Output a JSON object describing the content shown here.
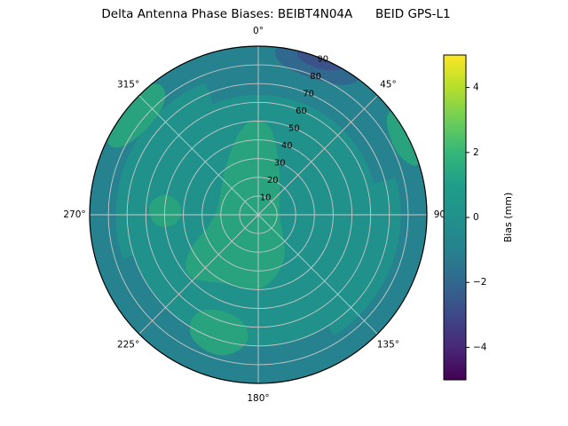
{
  "title": "Delta Antenna Phase Biases: BEIBT4N04A      BEID GPS-L1",
  "chart_data": {
    "type": "heatmap",
    "projection": "polar",
    "title": "Delta Antenna Phase Biases: BEIBT4N04A      BEID GPS-L1",
    "azimuth_ticks_deg": [
      0,
      45,
      90,
      135,
      180,
      225,
      270,
      315
    ],
    "azimuth_tick_labels": [
      "0°",
      "45°",
      "90°",
      "135°",
      "180°",
      "225°",
      "270°",
      "315°"
    ],
    "radial_ticks": [
      10,
      20,
      30,
      40,
      50,
      60,
      70,
      80,
      90
    ],
    "radial_max": 90,
    "grid": true,
    "base_bias_mm": 0,
    "colors": {
      "base": "#21918c",
      "grid": "#c8c8c8",
      "boundary": "#000000",
      "background": "#ffffff"
    },
    "colorbar": {
      "label": "Bias (mm)",
      "min": -5,
      "max": 5,
      "colormap": "viridis",
      "ticks": [
        {
          "value": -4,
          "label": "−4"
        },
        {
          "value": -2,
          "label": "−2"
        },
        {
          "value": 0,
          "label": "0"
        },
        {
          "value": 2,
          "label": "2"
        },
        {
          "value": 4,
          "label": "4"
        }
      ],
      "stops": [
        "#440154",
        "#482878",
        "#3e4989",
        "#31688e",
        "#26828e",
        "#21918c",
        "#1f9e89",
        "#35b779",
        "#6ece58",
        "#b5de2b",
        "#fde725"
      ]
    },
    "regions": [
      {
        "kind": "ring",
        "r_inner": 76,
        "r_outer": 90,
        "bias_mm": -1,
        "color": "#26828e"
      },
      {
        "kind": "sector",
        "az_start": 338,
        "az_end": 75,
        "r_inner": 64,
        "r_outer": 90,
        "bias_mm": -1,
        "color": "#26828e"
      },
      {
        "kind": "sector",
        "az_start": 148,
        "az_end": 252,
        "r_inner": 70,
        "r_outer": 90,
        "bias_mm": -1,
        "color": "#26828e"
      },
      {
        "kind": "blob",
        "bias_mm": -2,
        "color": "#31688e",
        "points": [
          [
            6,
            82
          ],
          [
            20,
            78
          ],
          [
            34,
            82
          ],
          [
            38,
            93
          ],
          [
            20,
            93
          ],
          [
            6,
            93
          ]
        ]
      },
      {
        "kind": "blob",
        "bias_mm": -3,
        "color": "#3b528b",
        "points": [
          [
            13,
            86
          ],
          [
            25,
            84
          ],
          [
            32,
            93
          ],
          [
            14,
            93
          ]
        ]
      },
      {
        "kind": "blob",
        "bias_mm": 1,
        "color": "#29a37e",
        "points": [
          [
            352,
            52
          ],
          [
            8,
            50
          ],
          [
            22,
            30
          ],
          [
            50,
            15
          ],
          [
            90,
            11
          ],
          [
            125,
            16
          ],
          [
            150,
            30
          ],
          [
            178,
            42
          ],
          [
            205,
            40
          ],
          [
            228,
            52
          ],
          [
            242,
            44
          ],
          [
            262,
            24
          ],
          [
            292,
            22
          ],
          [
            326,
            32
          ]
        ]
      },
      {
        "kind": "blob",
        "bias_mm": 1,
        "color": "#29a37e",
        "points": [
          [
            186,
            58
          ],
          [
            202,
            54
          ],
          [
            214,
            62
          ],
          [
            210,
            76
          ],
          [
            195,
            80
          ],
          [
            184,
            70
          ]
        ]
      },
      {
        "kind": "blob",
        "bias_mm": 1,
        "color": "#29a37e",
        "points": [
          [
            294,
            82
          ],
          [
            310,
            74
          ],
          [
            324,
            80
          ],
          [
            322,
            93
          ],
          [
            296,
            93
          ]
        ]
      },
      {
        "kind": "blob",
        "bias_mm": 1,
        "color": "#29a37e",
        "points": [
          [
            52,
            85
          ],
          [
            66,
            80
          ],
          [
            74,
            88
          ],
          [
            70,
            93
          ],
          [
            52,
            93
          ]
        ]
      },
      {
        "kind": "blob",
        "bias_mm": 1,
        "color": "#29a37e",
        "points": [
          [
            262,
            44
          ],
          [
            276,
            40
          ],
          [
            284,
            50
          ],
          [
            276,
            60
          ],
          [
            263,
            56
          ]
        ]
      }
    ]
  }
}
